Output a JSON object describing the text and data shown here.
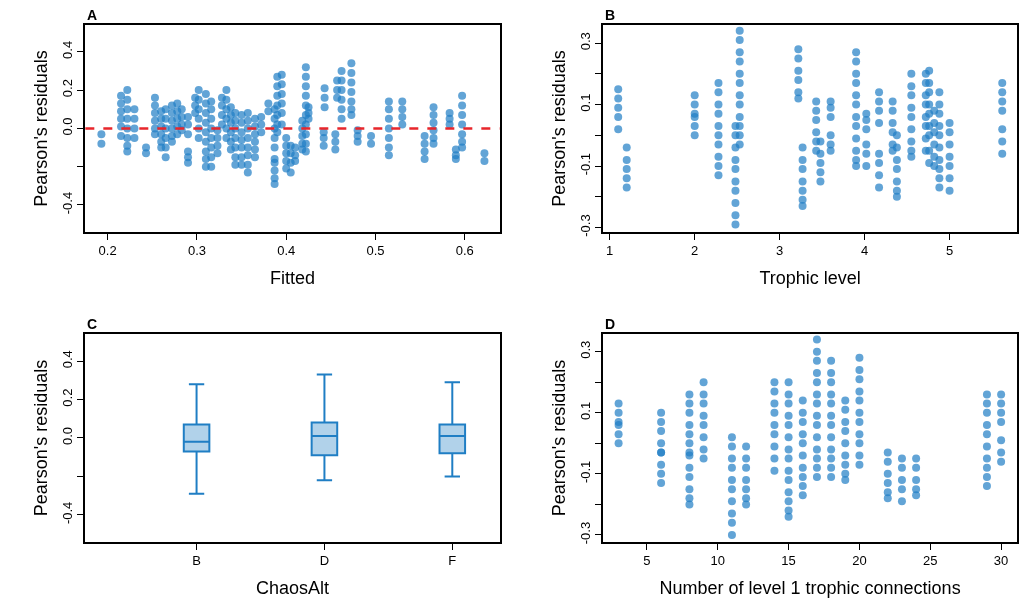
{
  "chart_data": [
    {
      "type": "scatter",
      "title": "A",
      "xlabel": "Fitted",
      "ylabel": "Pearson's residuals",
      "marker": "circle",
      "xlim": [
        0.175,
        0.639
      ],
      "xticks": [
        0.2,
        0.3,
        0.4,
        0.5,
        0.6
      ],
      "ylim": [
        -0.54,
        0.54
      ],
      "yticks": [
        -0.4,
        {
          "value": -0.2,
          "label": null
        },
        {
          "value": 0,
          "label": "0.0"
        },
        0.2,
        0.4
      ],
      "ref_lines": [
        {
          "axis": "y",
          "value": 0,
          "color": "#e8262b",
          "line_style": "dashed"
        }
      ],
      "series": [
        {
          "color": "#1f7ec4",
          "x": [
            0.193,
            0.193,
            0.215,
            0.215,
            0.215,
            0.215,
            0.215,
            0.215,
            0.222,
            0.222,
            0.222,
            0.222,
            0.222,
            0.222,
            0.222,
            0.222,
            0.23,
            0.23,
            0.23,
            0.23,
            0.243,
            0.243,
            0.253,
            0.253,
            0.253,
            0.253,
            0.253,
            0.253,
            0.26,
            0.26,
            0.26,
            0.26,
            0.26,
            0.26,
            0.265,
            0.265,
            0.265,
            0.265,
            0.265,
            0.265,
            0.272,
            0.272,
            0.272,
            0.272,
            0.272,
            0.272,
            0.278,
            0.278,
            0.278,
            0.278,
            0.278,
            0.283,
            0.283,
            0.283,
            0.283,
            0.29,
            0.29,
            0.29,
            0.29,
            0.29,
            0.29,
            0.298,
            0.298,
            0.298,
            0.302,
            0.302,
            0.302,
            0.302,
            0.302,
            0.302,
            0.31,
            0.31,
            0.31,
            0.31,
            0.31,
            0.31,
            0.31,
            0.31,
            0.31,
            0.316,
            0.316,
            0.316,
            0.316,
            0.316,
            0.316,
            0.316,
            0.316,
            0.323,
            0.323,
            0.323,
            0.323,
            0.328,
            0.328,
            0.328,
            0.328,
            0.333,
            0.333,
            0.333,
            0.333,
            0.333,
            0.333,
            0.338,
            0.338,
            0.338,
            0.338,
            0.338,
            0.338,
            0.343,
            0.343,
            0.343,
            0.343,
            0.343,
            0.343,
            0.343,
            0.35,
            0.35,
            0.35,
            0.35,
            0.35,
            0.35,
            0.35,
            0.357,
            0.357,
            0.357,
            0.357,
            0.357,
            0.357,
            0.357,
            0.357,
            0.365,
            0.365,
            0.365,
            0.365,
            0.365,
            0.365,
            0.372,
            0.372,
            0.372,
            0.38,
            0.38,
            0.387,
            0.387,
            0.387,
            0.387,
            0.387,
            0.387,
            0.387,
            0.387,
            0.387,
            0.387,
            0.39,
            0.39,
            0.39,
            0.39,
            0.39,
            0.39,
            0.39,
            0.395,
            0.395,
            0.395,
            0.395,
            0.395,
            0.395,
            0.4,
            0.4,
            0.4,
            0.4,
            0.4,
            0.405,
            0.405,
            0.405,
            0.405,
            0.41,
            0.41,
            0.41,
            0.418,
            0.418,
            0.418,
            0.418,
            0.418,
            0.422,
            0.422,
            0.422,
            0.422,
            0.422,
            0.422,
            0.422,
            0.422,
            0.422,
            0.422,
            0.425,
            0.425,
            0.425,
            0.442,
            0.442,
            0.442,
            0.443,
            0.443,
            0.443,
            0.455,
            0.455,
            0.455,
            0.457,
            0.457,
            0.457,
            0.462,
            0.462,
            0.462,
            0.462,
            0.462,
            0.462,
            0.473,
            0.473,
            0.473,
            0.473,
            0.473,
            0.473,
            0.473,
            0.48,
            0.48,
            0.48,
            0.495,
            0.495,
            0.515,
            0.515,
            0.515,
            0.515,
            0.515,
            0.515,
            0.515,
            0.53,
            0.53,
            0.53,
            0.53,
            0.555,
            0.555,
            0.555,
            0.555,
            0.565,
            0.565,
            0.565,
            0.565,
            0.565,
            0.565,
            0.583,
            0.583,
            0.583,
            0.59,
            0.59,
            0.59,
            0.597,
            0.597,
            0.597,
            0.597,
            0.597,
            0.597,
            0.597,
            0.622,
            0.622
          ],
          "values": [
            -0.03,
            -0.08,
            0.17,
            0.13,
            0.09,
            0.05,
            0.01,
            -0.04,
            0.2,
            0.15,
            0.1,
            0.05,
            0,
            -0.05,
            -0.09,
            -0.12,
            0.1,
            0.05,
            0,
            -0.05,
            -0.1,
            -0.13,
            0.16,
            0.12,
            0.08,
            0.04,
            0,
            -0.03,
            0.09,
            0.05,
            0.01,
            -0.03,
            -0.07,
            -0.1,
            0.1,
            0.05,
            0,
            -0.05,
            -0.1,
            -0.15,
            0.12,
            0.08,
            0.04,
            0,
            -0.04,
            -0.07,
            0.13,
            0.09,
            0.05,
            0.01,
            -0.03,
            0.1,
            0.06,
            0.02,
            -0.01,
            0.06,
            0.02,
            -0.03,
            -0.12,
            -0.15,
            -0.18,
            0.16,
            0.12,
            0.08,
            0.2,
            0.15,
            0.1,
            0.05,
            0,
            -0.05,
            0.18,
            0.13,
            0.08,
            0.03,
            -0.02,
            -0.07,
            -0.12,
            -0.16,
            -0.2,
            0.14,
            0.1,
            0.05,
            0,
            -0.05,
            -0.1,
            -0.15,
            -0.2,
            -0.01,
            -0.05,
            -0.09,
            -0.13,
            0.16,
            0.12,
            0.07,
            0.02,
            0.2,
            0.15,
            0.1,
            0.05,
            0,
            -0.05,
            0.11,
            0.07,
            0.03,
            -0.02,
            -0.07,
            -0.11,
            0.08,
            0.04,
            0,
            -0.05,
            -0.1,
            -0.15,
            -0.19,
            0.07,
            0.03,
            -0.02,
            -0.06,
            -0.1,
            -0.15,
            -0.19,
            0.08,
            0.04,
            0,
            -0.05,
            -0.1,
            -0.14,
            -0.19,
            -0.23,
            0.05,
            0.01,
            -0.03,
            -0.07,
            -0.11,
            -0.15,
            0.06,
            0.02,
            -0.02,
            0.13,
            0.09,
            0.1,
            0.05,
            0,
            -0.05,
            -0.1,
            -0.16,
            -0.18,
            -0.22,
            -0.26,
            -0.29,
            0.27,
            0.22,
            0.17,
            0.12,
            0.07,
            0.02,
            -0.02,
            0.28,
            0.23,
            0.18,
            0.13,
            0.08,
            0.02,
            -0.05,
            -0.09,
            -0.13,
            -0.17,
            -0.21,
            -0.09,
            -0.13,
            -0.18,
            -0.23,
            -0.1,
            -0.14,
            -0.17,
            0.04,
            0,
            -0.04,
            -0.08,
            -0.11,
            0.32,
            0.27,
            0.22,
            0.17,
            0.12,
            0.07,
            0.02,
            -0.03,
            -0.08,
            -0.12,
            0.11,
            0.08,
            0.05,
            -0.02,
            -0.05,
            -0.09,
            0.21,
            0.16,
            0.11,
            -0.03,
            -0.07,
            -0.11,
            0.25,
            0.2,
            0.16,
            0.3,
            0.25,
            0.2,
            0.15,
            0.1,
            0.05,
            0.34,
            0.29,
            0.24,
            0.19,
            0.14,
            0.1,
            0.07,
            -0.01,
            -0.04,
            -0.07,
            -0.04,
            -0.08,
            0.14,
            0.1,
            0.05,
            0,
            -0.05,
            -0.1,
            -0.14,
            0.14,
            0.1,
            0.06,
            0.02,
            -0.04,
            -0.08,
            -0.12,
            -0.16,
            0.11,
            0.07,
            0.03,
            -0.01,
            -0.05,
            -0.08,
            0.08,
            0.05,
            0.02,
            -0.11,
            -0.14,
            -0.16,
            0.17,
            0.12,
            0.07,
            0.02,
            -0.03,
            -0.07,
            -0.1,
            -0.13,
            -0.17
          ]
        }
      ]
    },
    {
      "type": "scatter",
      "title": "B",
      "xlabel": "Trophic level",
      "ylabel": "Pearson's residuals",
      "marker": "circle",
      "xlim": [
        0.926,
        5.79
      ],
      "xticks": [
        1,
        2,
        3,
        4,
        5
      ],
      "ylim": [
        -0.314,
        0.359
      ],
      "yticks": [
        -0.3,
        {
          "value": -0.2,
          "label": null
        },
        -0.1,
        {
          "value": 0,
          "label": null
        },
        0.1,
        {
          "value": 0.2,
          "label": null
        },
        0.3
      ],
      "series": [
        {
          "color": "#1f7ec4",
          "x": [
            1.1,
            1.1,
            1.1,
            1.1,
            1.1,
            1.2,
            1.2,
            1.2,
            1.2,
            1.2,
            2.0,
            2.0,
            2.0,
            2.0,
            2.0,
            2.0,
            2.28,
            2.28,
            2.28,
            2.28,
            2.28,
            2.28,
            2.28,
            2.28,
            2.28,
            2.28,
            2.48,
            2.48,
            2.48,
            2.48,
            2.48,
            2.48,
            2.48,
            2.48,
            2.48,
            2.48,
            2.53,
            2.53,
            2.53,
            2.53,
            2.53,
            2.53,
            2.53,
            2.53,
            2.53,
            2.53,
            2.53,
            2.53,
            3.22,
            3.22,
            3.22,
            3.22,
            3.22,
            3.22,
            3.27,
            3.27,
            3.27,
            3.27,
            3.27,
            3.27,
            3.27,
            3.43,
            3.43,
            3.43,
            3.43,
            3.43,
            3.43,
            3.48,
            3.48,
            3.48,
            3.48,
            3.48,
            3.6,
            3.6,
            3.6,
            3.6,
            3.6,
            3.6,
            3.9,
            3.9,
            3.9,
            3.9,
            3.9,
            3.9,
            3.9,
            3.9,
            3.9,
            3.9,
            3.9,
            3.9,
            4.02,
            4.02,
            4.02,
            4.02,
            4.02,
            4.02,
            4.17,
            4.17,
            4.17,
            4.17,
            4.17,
            4.17,
            4.17,
            4.17,
            4.33,
            4.33,
            4.33,
            4.33,
            4.33,
            4.33,
            4.38,
            4.38,
            4.38,
            4.38,
            4.38,
            4.38,
            4.38,
            4.55,
            4.55,
            4.55,
            4.55,
            4.55,
            4.55,
            4.55,
            4.55,
            4.55,
            4.72,
            4.72,
            4.72,
            4.72,
            4.72,
            4.72,
            4.72,
            4.72,
            4.76,
            4.76,
            4.76,
            4.76,
            4.76,
            4.76,
            4.76,
            4.76,
            4.76,
            4.82,
            4.82,
            4.82,
            4.82,
            4.82,
            4.82,
            4.88,
            4.88,
            4.88,
            4.88,
            4.88,
            4.88,
            4.88,
            4.88,
            4.88,
            4.88,
            5.0,
            5.0,
            5.0,
            5.0,
            5.0,
            5.0,
            5.0,
            5.62,
            5.62,
            5.62,
            5.62,
            5.62,
            5.62,
            5.62
          ],
          "values": [
            0.15,
            0.12,
            0.09,
            0.06,
            0.02,
            -0.04,
            -0.08,
            -0.11,
            -0.14,
            -0.17,
            0.13,
            0.1,
            0.07,
            0.06,
            0.03,
            0.0,
            0.17,
            0.14,
            0.1,
            0.07,
            0.03,
            0,
            -0.03,
            -0.07,
            -0.1,
            -0.13,
            0.03,
            0,
            -0.04,
            -0.08,
            -0.11,
            -0.15,
            -0.18,
            -0.22,
            -0.26,
            -0.29,
            0.34,
            0.31,
            0.27,
            0.24,
            0.2,
            0.17,
            0.13,
            0.1,
            0.06,
            0.03,
            0,
            -0.03,
            0.28,
            0.25,
            0.21,
            0.18,
            0.14,
            0.12,
            -0.04,
            -0.08,
            -0.11,
            -0.15,
            -0.18,
            -0.21,
            -0.23,
            0.11,
            0.08,
            0.05,
            0.01,
            -0.02,
            -0.05,
            -0.02,
            -0.06,
            -0.09,
            -0.12,
            -0.15,
            0.11,
            0.09,
            0.06,
            0,
            -0.03,
            -0.05,
            0.27,
            0.24,
            0.2,
            0.17,
            0.13,
            0.1,
            0.06,
            0.03,
            -0.01,
            -0.05,
            -0.08,
            -0.1,
            0.07,
            0.05,
            0.02,
            -0.03,
            -0.06,
            -0.1,
            0.14,
            0.11,
            0.08,
            0.04,
            -0.06,
            -0.09,
            -0.13,
            -0.17,
            0.11,
            0.08,
            0.04,
            0.01,
            -0.03,
            -0.05,
            0,
            -0.04,
            -0.08,
            -0.11,
            -0.15,
            -0.18,
            -0.2,
            0.2,
            0.16,
            0.13,
            0.09,
            0.06,
            0.02,
            -0.02,
            -0.05,
            -0.07,
            0.2,
            0.17,
            0.13,
            0.1,
            0.06,
            0.03,
            -0.01,
            -0.05,
            0.21,
            0.17,
            0.14,
            0.1,
            0.07,
            0.03,
            0,
            -0.05,
            -0.09,
            0.08,
            0.04,
            0.01,
            -0.03,
            -0.07,
            -0.1,
            0.14,
            0.1,
            0.07,
            0.03,
            0,
            -0.04,
            -0.08,
            -0.11,
            -0.14,
            -0.17,
            0.04,
            0.01,
            -0.03,
            -0.07,
            -0.1,
            -0.14,
            -0.18,
            0.17,
            0.14,
            0.11,
            0.08,
            0.02,
            -0.02,
            -0.06
          ]
        }
      ]
    },
    {
      "type": "box",
      "title": "C",
      "xlabel": "ChaosAlt",
      "ylabel": "Pearson's residuals",
      "categories": [
        "B",
        "D",
        "F"
      ],
      "ylim": [
        -0.54,
        0.54
      ],
      "yticks": [
        -0.4,
        {
          "value": -0.2,
          "label": null
        },
        {
          "value": 0,
          "label": "0.0"
        },
        0.2,
        0.4
      ],
      "series": [
        {
          "color": "#1f7ec4",
          "boxes": [
            {
              "low": -0.29,
              "q1": -0.07,
              "median": -0.02,
              "q3": 0.07,
              "high": 0.28
            },
            {
              "low": -0.22,
              "q1": -0.09,
              "median": 0.01,
              "q3": 0.08,
              "high": 0.33
            },
            {
              "low": -0.2,
              "q1": -0.08,
              "median": 0.01,
              "q3": 0.07,
              "high": 0.29
            }
          ]
        }
      ]
    },
    {
      "type": "scatter",
      "title": "D",
      "xlabel": "Number of level 1 trophic connections",
      "ylabel": "Pearson's residuals",
      "marker": "circle",
      "xlim": [
        1.93,
        31.1
      ],
      "xticks": [
        5,
        10,
        15,
        20,
        25,
        30
      ],
      "ylim": [
        -0.322,
        0.357
      ],
      "yticks": [
        -0.3,
        {
          "value": -0.2,
          "label": null
        },
        -0.1,
        {
          "value": 0,
          "label": null
        },
        0.1,
        {
          "value": 0.2,
          "label": null
        },
        0.3
      ],
      "series": [
        {
          "color": "#1f7ec4",
          "x": [
            3,
            3,
            3,
            3,
            3,
            3,
            6,
            6,
            6,
            6,
            6,
            6,
            6,
            6,
            6,
            8,
            8,
            8,
            8,
            8,
            8,
            8,
            8,
            8,
            8,
            8,
            8,
            8,
            9,
            9,
            9,
            9,
            9,
            9,
            9,
            9,
            11,
            11,
            11,
            11,
            11,
            11,
            11,
            11,
            11,
            11,
            12,
            12,
            12,
            12,
            12,
            12,
            12,
            14,
            14,
            14,
            14,
            14,
            14,
            14,
            14,
            14,
            15,
            15,
            15,
            15,
            15,
            15,
            15,
            15,
            15,
            15,
            15,
            15,
            15,
            15,
            16,
            16,
            16,
            16,
            16,
            16,
            16,
            16,
            16,
            16,
            17,
            17,
            17,
            17,
            17,
            17,
            17,
            17,
            17,
            17,
            17,
            17,
            17,
            17,
            18,
            18,
            18,
            18,
            18,
            18,
            18,
            18,
            18,
            18,
            18,
            18,
            19,
            19,
            19,
            19,
            19,
            19,
            19,
            19,
            19,
            20,
            20,
            20,
            20,
            20,
            20,
            20,
            20,
            20,
            20,
            20,
            22,
            22,
            22,
            22,
            22,
            22,
            23,
            23,
            23,
            23,
            23,
            24,
            24,
            24,
            24,
            24,
            29,
            29,
            29,
            29,
            29,
            29,
            29,
            29,
            29,
            29,
            30,
            30,
            30,
            30,
            30,
            30,
            30
          ],
          "values": [
            0.13,
            0.1,
            0.07,
            0.06,
            0.03,
            0.0,
            0.1,
            0.07,
            0.04,
            0,
            -0.03,
            -0.03,
            -0.07,
            -0.1,
            -0.13,
            0.16,
            0.13,
            0.1,
            0.06,
            0.03,
            0,
            -0.03,
            -0.04,
            -0.08,
            -0.11,
            -0.15,
            -0.18,
            -0.2,
            0.2,
            0.16,
            0.13,
            0.09,
            0.06,
            0.02,
            -0.02,
            -0.05,
            0.02,
            -0.01,
            -0.05,
            -0.08,
            -0.12,
            -0.15,
            -0.19,
            -0.23,
            -0.26,
            -0.3,
            -0.01,
            -0.05,
            -0.08,
            -0.12,
            -0.15,
            -0.18,
            -0.2,
            0.2,
            0.17,
            0.13,
            0.1,
            0.06,
            0.03,
            -0.01,
            -0.05,
            -0.09,
            0.2,
            0.16,
            0.13,
            0.09,
            0.06,
            0.02,
            -0.02,
            -0.05,
            -0.09,
            -0.12,
            -0.16,
            -0.19,
            -0.22,
            -0.24,
            0.14,
            0.1,
            0.07,
            0.03,
            0,
            -0.04,
            -0.08,
            -0.11,
            -0.14,
            -0.17,
            0.34,
            0.3,
            0.27,
            0.23,
            0.2,
            0.16,
            0.13,
            0.09,
            0.06,
            0.02,
            -0.02,
            -0.05,
            -0.08,
            -0.11,
            0.27,
            0.23,
            0.2,
            0.16,
            0.13,
            0.09,
            0.06,
            0.02,
            -0.02,
            -0.05,
            -0.08,
            -0.11,
            0.14,
            0.11,
            0.07,
            0.04,
            0,
            -0.04,
            -0.07,
            -0.1,
            -0.12,
            0.28,
            0.24,
            0.21,
            0.17,
            0.14,
            0.1,
            0.07,
            0.03,
            0,
            -0.04,
            -0.07,
            -0.03,
            -0.06,
            -0.1,
            -0.13,
            -0.16,
            -0.18,
            -0.05,
            -0.08,
            -0.12,
            -0.15,
            -0.19,
            -0.05,
            -0.08,
            -0.12,
            -0.15,
            -0.17,
            0.16,
            0.13,
            0.1,
            0.06,
            0.03,
            -0.01,
            -0.05,
            -0.08,
            -0.11,
            -0.14,
            0.16,
            0.13,
            0.1,
            0.07,
            0.01,
            -0.03,
            -0.06
          ]
        }
      ]
    }
  ]
}
